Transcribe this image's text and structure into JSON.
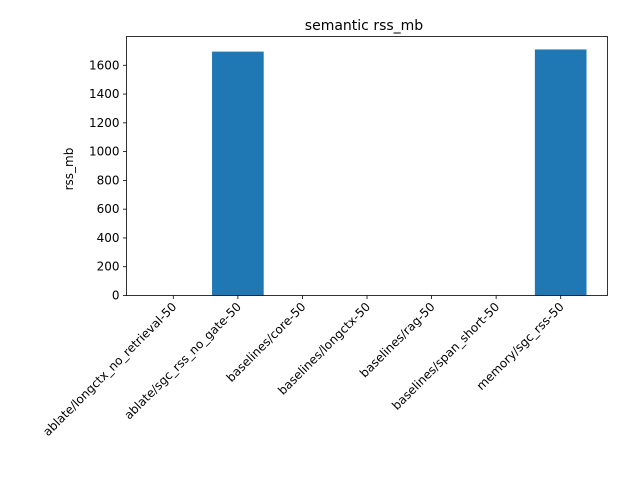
{
  "chart_data": {
    "type": "bar",
    "title": "semantic rss_mb",
    "xlabel": "",
    "ylabel": "rss_mb",
    "categories": [
      "ablate/longctx_no_retrieval-50",
      "ablate/sgc_rss_no_gate-50",
      "baselines/core-50",
      "baselines/longctx-50",
      "baselines/rag-50",
      "baselines/span_short-50",
      "memory/sgc_rss-50"
    ],
    "values": [
      0,
      1695,
      0,
      0,
      0,
      0,
      1710
    ],
    "ylim": [
      0,
      1800
    ],
    "yticks": [
      0,
      200,
      400,
      600,
      800,
      1000,
      1200,
      1400,
      1600
    ],
    "bar_color": "#1f77b4",
    "grid": false,
    "legend": "none"
  }
}
